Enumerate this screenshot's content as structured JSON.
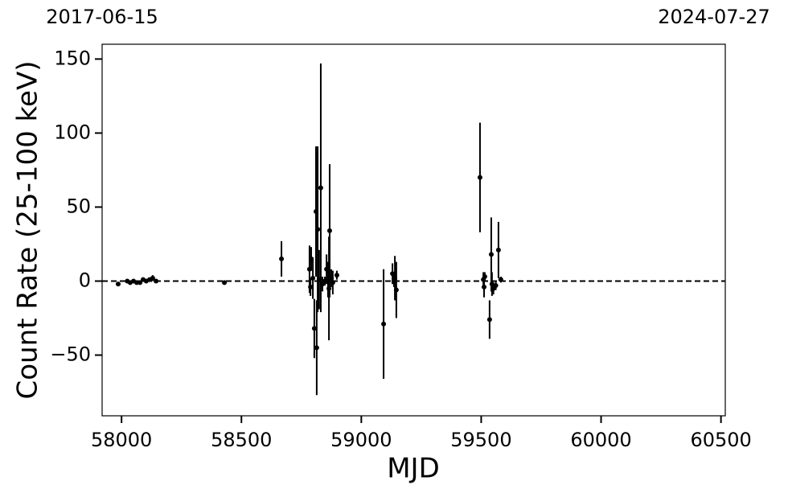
{
  "chart_data": {
    "type": "errorbar",
    "xlabel": "MJD",
    "ylabel": "Count Rate (25-100 keV)",
    "xlim": [
      57919,
      60518
    ],
    "ylim": [
      -91,
      160
    ],
    "xticks": [
      58000,
      58500,
      59000,
      59500,
      60000,
      60500
    ],
    "yticks": [
      {
        "value": -50,
        "label": "−50"
      },
      0,
      50,
      100,
      150
    ],
    "x2ticks": [
      {
        "value": 57919,
        "label": "2017-06-15"
      },
      {
        "value": 60518,
        "label": "2024-07-27"
      }
    ],
    "reference_line": 0,
    "color": "#000000",
    "x": [
      57986,
      58024,
      58036,
      58050,
      58063,
      58077,
      58090,
      58103,
      58117,
      58130,
      58144,
      58429,
      58667,
      58784,
      58788,
      58791,
      58798,
      58804,
      58811,
      58814,
      58818,
      58824,
      58831,
      58838,
      58848,
      58855,
      58861,
      58865,
      58868,
      58875,
      58881,
      58898,
      59093,
      59130,
      59136,
      59140,
      59146,
      59495,
      59509,
      59512,
      59515,
      59535,
      59542,
      59545,
      59551,
      59561,
      59572,
      59582
    ],
    "values": [
      -2,
      0,
      -1,
      0,
      -1,
      -1,
      1,
      0,
      1,
      2,
      0,
      -1,
      15,
      8,
      -4,
      15,
      2,
      -32,
      47,
      -45,
      35,
      1,
      63,
      -2,
      0,
      8,
      1,
      -5,
      34,
      2,
      -1,
      4,
      -29,
      5,
      0,
      2,
      -6,
      70,
      1,
      -4,
      3,
      -26,
      18,
      -2,
      -5,
      -3,
      21,
      1
    ],
    "errors": [
      1,
      1,
      1,
      1,
      1,
      1,
      1,
      1,
      1,
      2,
      1,
      1,
      12,
      16,
      6,
      8,
      14,
      20,
      44,
      32,
      56,
      20,
      84,
      5,
      3,
      10,
      12,
      35,
      45,
      6,
      8,
      3,
      37,
      7,
      4,
      15,
      19,
      37,
      5,
      7,
      3,
      13,
      25,
      8,
      4,
      3,
      19,
      2
    ]
  }
}
